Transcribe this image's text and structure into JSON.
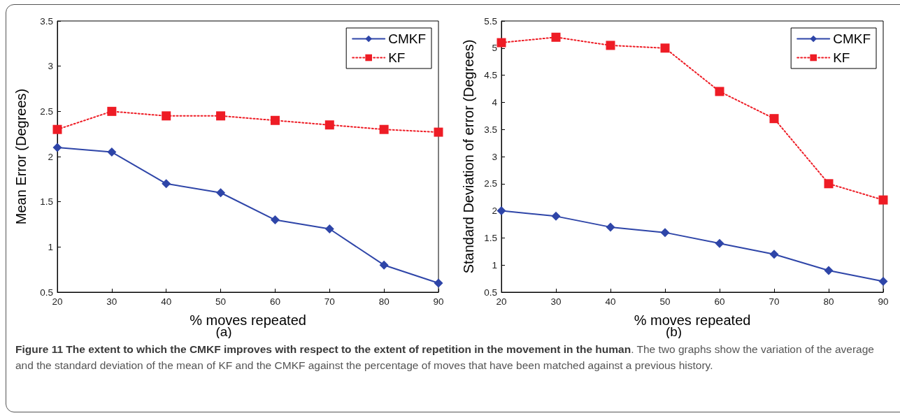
{
  "chart_data": [
    {
      "type": "line",
      "xlabel": "% moves repeated",
      "ylabel": "Mean Error (Degrees)",
      "x": [
        20,
        30,
        40,
        50,
        60,
        70,
        80,
        90
      ],
      "series": [
        {
          "name": "CMKF",
          "color": "#2e45a8",
          "marker": "diamond",
          "line_style": "solid",
          "values": [
            2.1,
            2.05,
            1.7,
            1.6,
            1.3,
            1.2,
            0.8,
            0.6
          ]
        },
        {
          "name": "KF",
          "color": "#ee1c25",
          "marker": "square",
          "line_style": "dotted",
          "values": [
            2.3,
            2.5,
            2.45,
            2.45,
            2.4,
            2.35,
            2.3,
            2.27
          ]
        }
      ],
      "xlim": [
        20,
        90
      ],
      "xticks": [
        20,
        30,
        40,
        50,
        60,
        70,
        80,
        90
      ],
      "ylim": [
        0.5,
        3.5
      ],
      "yticks": [
        0.5,
        1,
        1.5,
        2,
        2.5,
        3,
        3.5
      ],
      "grid": false,
      "legend": "top right",
      "annotations": [
        "(a)",
        "Figure 11 The extent to which the CMKF improves with respect to the extent of repetition in the movement in the human",
        ". The two graphs show the variation of the average and the standard deviation of the mean of KF and the CMKF against the percentage of moves that have been matched against a previous history."
      ]
    },
    {
      "type": "line",
      "xlabel": "% moves repeated",
      "ylabel": "Standard Deviation of error (Degrees)",
      "x": [
        20,
        30,
        40,
        50,
        60,
        70,
        80,
        90
      ],
      "series": [
        {
          "name": "CMKF",
          "color": "#2e45a8",
          "marker": "diamond",
          "line_style": "solid",
          "values": [
            2.0,
            1.9,
            1.7,
            1.6,
            1.4,
            1.2,
            0.9,
            0.7
          ]
        },
        {
          "name": "KF",
          "color": "#ee1c25",
          "marker": "square",
          "line_style": "dotted",
          "values": [
            5.1,
            5.2,
            5.05,
            5.0,
            4.2,
            3.7,
            2.5,
            2.2
          ]
        }
      ],
      "xlim": [
        20,
        90
      ],
      "xticks": [
        20,
        30,
        40,
        50,
        60,
        70,
        80,
        90
      ],
      "ylim": [
        0.5,
        5.5
      ],
      "yticks": [
        0.5,
        1,
        1.5,
        2,
        2.5,
        3,
        3.5,
        4,
        4.5,
        5,
        5.5
      ],
      "grid": false,
      "legend": "top right",
      "annotations": [
        "(b)"
      ]
    }
  ]
}
